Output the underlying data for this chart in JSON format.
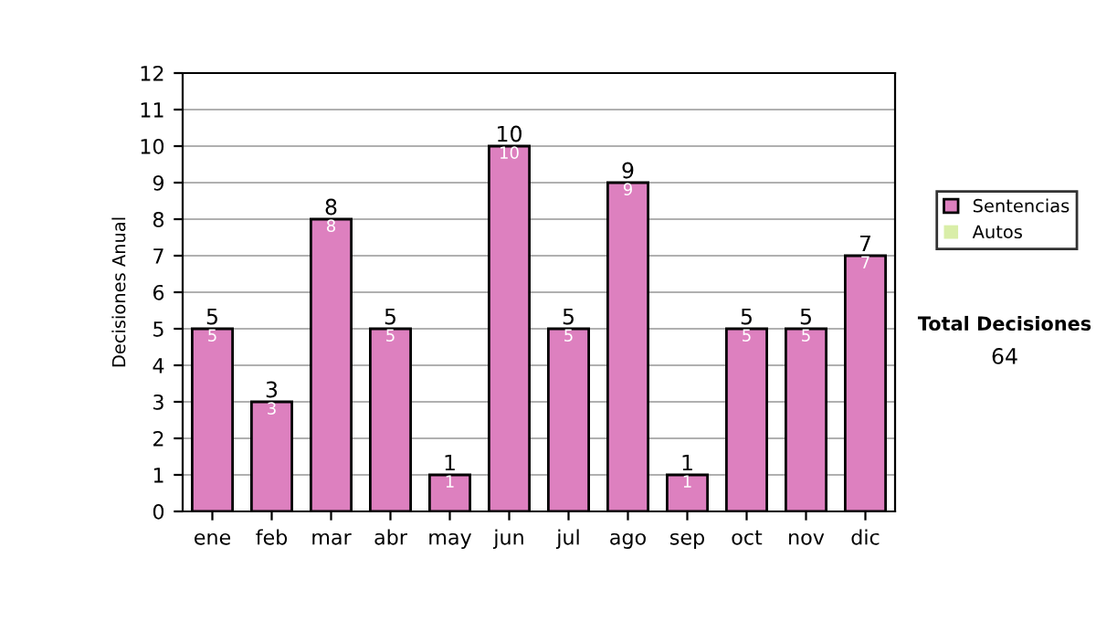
{
  "chart_data": {
    "type": "bar",
    "stacked": true,
    "ylabel": "Decisiones Anual",
    "categories": [
      "ene",
      "feb",
      "mar",
      "abr",
      "may",
      "jun",
      "jul",
      "ago",
      "sep",
      "oct",
      "nov",
      "dic"
    ],
    "series": [
      {
        "name": "Sentencias",
        "color": "#dd80bf",
        "values": [
          5,
          3,
          8,
          5,
          1,
          10,
          5,
          9,
          1,
          5,
          5,
          7
        ],
        "value_labels": [
          "5",
          "3",
          "8",
          "5",
          "1",
          "10",
          "5",
          "9",
          "1",
          "5",
          "5",
          "7"
        ]
      },
      {
        "name": "Autos",
        "color": "#d9eea8",
        "values": [
          0,
          0,
          0,
          0,
          0,
          0,
          0,
          0,
          0,
          0,
          0,
          0
        ]
      }
    ],
    "totals": [
      "5",
      "3",
      "8",
      "5",
      "1",
      "10",
      "5",
      "9",
      "1",
      "5",
      "5",
      "7"
    ],
    "ylim": [
      0,
      12
    ],
    "yticks": [
      0,
      1,
      2,
      3,
      4,
      5,
      6,
      7,
      8,
      9,
      10,
      11,
      12
    ],
    "grid": "y",
    "legend": "right",
    "annotations": [
      "Total Decisiones",
      "64"
    ]
  }
}
